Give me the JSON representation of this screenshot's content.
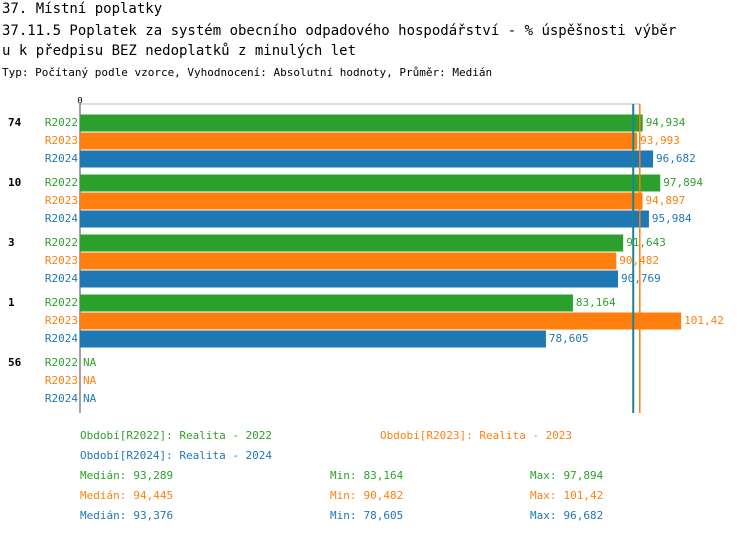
{
  "chart_data": {
    "type": "bar",
    "orientation": "horizontal",
    "title": "37. Místní poplatky",
    "subtitle_lines": [
      "37.11.5 Poplatek za systém obecního odpadového hospodářství  - % úspěšnosti výběr",
      "u k předpisu BEZ nedoplatků z minulých let"
    ],
    "note": "Typ: Počítaný podle vzorce, Vyhodnocení: Absolutní hodnoty, Průměr: Medián",
    "categories": [
      "74",
      "10",
      "3",
      "1",
      "56"
    ],
    "xlim": [
      0,
      110
    ],
    "xticks": [
      0
    ],
    "stat_labels": {
      "median": "Medián:",
      "min": "Min:",
      "max": "Max:"
    },
    "series": [
      {
        "name": "R2022",
        "color": "#2ca02c",
        "legend": "Období[R2022]: Realita - 2022",
        "values": [
          94.934,
          97.894,
          91.643,
          83.164,
          null
        ],
        "value_labels": [
          "94,934",
          "97,894",
          "91,643",
          "83,164",
          "NA"
        ],
        "median": 93.289,
        "median_label": "93,289",
        "min": 83.164,
        "min_label": "83,164",
        "max": 97.894,
        "max_label": "97,894"
      },
      {
        "name": "R2023",
        "color": "#ff7f0e",
        "legend": "Období[R2023]: Realita - 2023",
        "values": [
          93.993,
          94.897,
          90.482,
          101.42,
          null
        ],
        "value_labels": [
          "93,993",
          "94,897",
          "90,482",
          "101,42",
          "NA"
        ],
        "median": 94.445,
        "median_label": "94,445",
        "min": 90.482,
        "min_label": "90,482",
        "max": 101.42,
        "max_label": "101,42"
      },
      {
        "name": "R2024",
        "color": "#1f77b4",
        "legend": "Období[R2024]: Realita - 2024",
        "values": [
          96.682,
          95.984,
          90.769,
          78.605,
          null
        ],
        "value_labels": [
          "96,682",
          "95,984",
          "90,769",
          "78,605",
          "NA"
        ],
        "median": 93.376,
        "median_label": "93,376",
        "min": 78.605,
        "min_label": "78,605",
        "max": 96.682,
        "max_label": "96,682"
      }
    ]
  }
}
